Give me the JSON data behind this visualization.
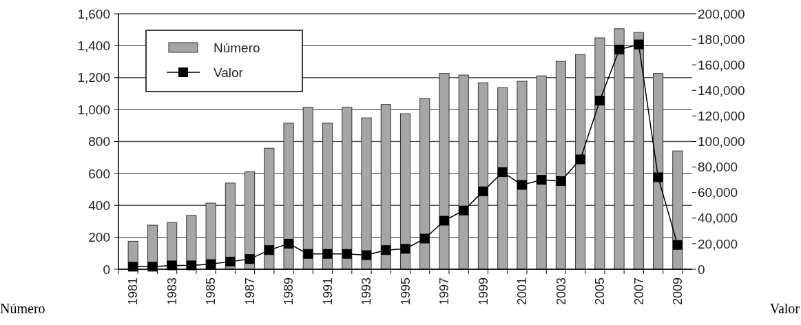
{
  "chart_data": {
    "type": "bar",
    "xlabel": null,
    "ylabel": "Número",
    "y2label": "Valor",
    "categories": [
      "1981",
      null,
      "1983",
      null,
      "1985",
      null,
      "1987",
      null,
      "1989",
      null,
      "1991",
      null,
      "1993",
      null,
      "1995",
      null,
      "1997",
      null,
      "1999",
      null,
      "2001",
      null,
      "2003",
      null,
      "2005",
      null,
      "2007",
      null,
      "2009"
    ],
    "series": [
      {
        "name": "Número",
        "color": "#a6a6a6",
        "values": [
          175,
          276,
          293,
          337,
          414,
          540,
          610,
          758,
          915,
          1014,
          915,
          1014,
          948,
          1032,
          974,
          1070,
          1226,
          1216,
          1168,
          1137,
          1177,
          1211,
          1302,
          1345,
          1449,
          1506,
          1483,
          1226,
          741
        ]
      },
      {
        "name": "Valor",
        "type": "line",
        "axis": "y2",
        "color": "#000000",
        "marker": "square",
        "values": [
          2000,
          2000,
          3000,
          3000,
          4000,
          6000,
          8000,
          15000,
          20000,
          12000,
          12000,
          12000,
          11000,
          15000,
          16000,
          24000,
          38000,
          46000,
          61000,
          76000,
          66000,
          70000,
          69000,
          86000,
          132000,
          172000,
          176000,
          72000,
          19000
        ]
      }
    ],
    "ylim": [
      0,
      1600
    ],
    "yticks": [
      0,
      200,
      400,
      600,
      800,
      {
        "value": 1000,
        "label": "1,000"
      },
      {
        "value": 1200,
        "label": "1,200"
      },
      {
        "value": 1400,
        "label": "1,400"
      },
      {
        "value": 1600,
        "label": "1,600"
      }
    ],
    "y2lim": [
      0,
      200000
    ],
    "y2ticks": [
      0,
      {
        "value": 20000,
        "label": "20,000"
      },
      {
        "value": 40000,
        "label": "40,000"
      },
      {
        "value": 60000,
        "label": "60,000"
      },
      {
        "value": 80000,
        "label": "80,000"
      },
      {
        "value": 100000,
        "label": "100,000"
      },
      {
        "value": 120000,
        "label": "120,000"
      },
      {
        "value": 140000,
        "label": "140,000"
      },
      {
        "value": 160000,
        "label": "160,000"
      },
      {
        "value": 180000,
        "label": "180,000"
      },
      {
        "value": 200000,
        "label": "200,000"
      }
    ],
    "grid": "y",
    "legend": "top left"
  }
}
